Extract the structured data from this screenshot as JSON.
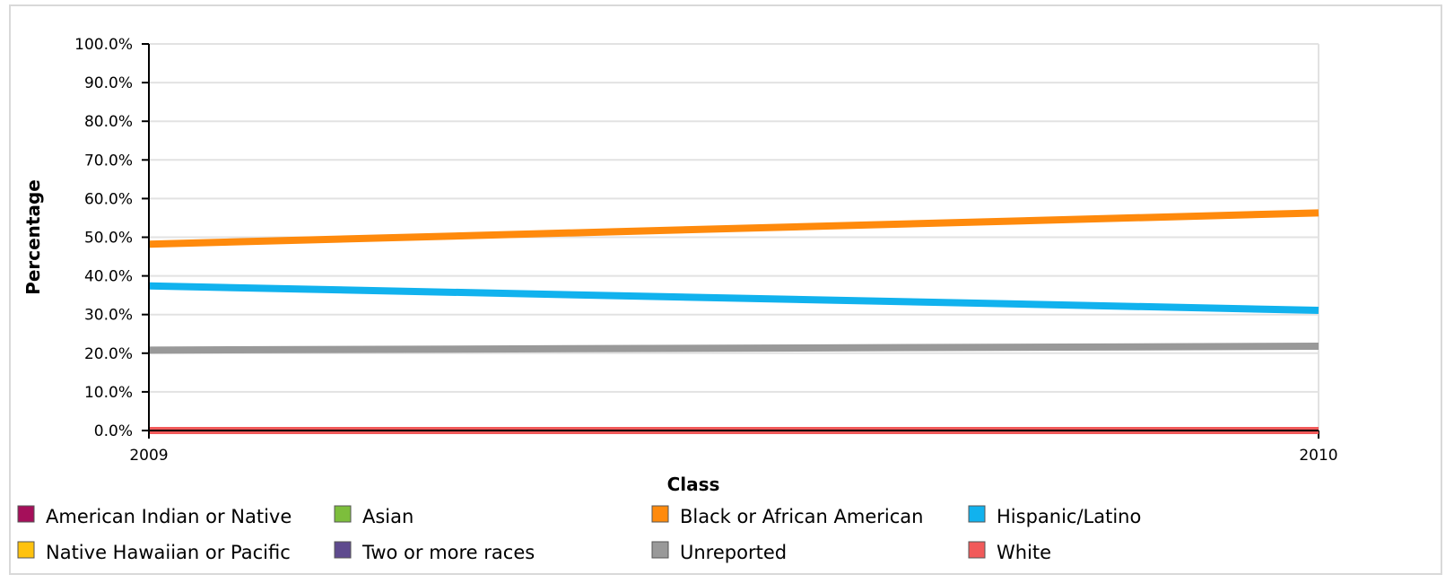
{
  "chart_data": {
    "type": "line",
    "title": "",
    "xlabel": "Class",
    "ylabel": "Percentage",
    "x": [
      "2009",
      "2010"
    ],
    "ylim": [
      0,
      100
    ],
    "y_ticks": [
      "0.0%",
      "10.0%",
      "20.0%",
      "30.0%",
      "40.0%",
      "50.0%",
      "60.0%",
      "70.0%",
      "80.0%",
      "90.0%",
      "100.0%"
    ],
    "grid": true,
    "legend_position": "bottom",
    "series": [
      {
        "name": "American Indian or Native",
        "color": "#a50f5a",
        "values": [
          0,
          0
        ]
      },
      {
        "name": "Asian",
        "color": "#7dbe3c",
        "values": [
          0,
          0
        ]
      },
      {
        "name": "Black or African American",
        "color": "#ff8a0c",
        "values": [
          48.2,
          56.3
        ]
      },
      {
        "name": "Hispanic/Latino",
        "color": "#11b2ee",
        "values": [
          37.4,
          31.1
        ]
      },
      {
        "name": "Native Hawaiian or Pacific",
        "color": "#ffc20e",
        "values": [
          0,
          0
        ]
      },
      {
        "name": "Two or more races",
        "color": "#5e4a8e",
        "values": [
          0,
          0
        ]
      },
      {
        "name": "Unreported",
        "color": "#999999",
        "values": [
          20.8,
          21.8
        ]
      },
      {
        "name": "White",
        "color": "#f15a5a",
        "values": [
          0,
          0
        ]
      }
    ]
  }
}
